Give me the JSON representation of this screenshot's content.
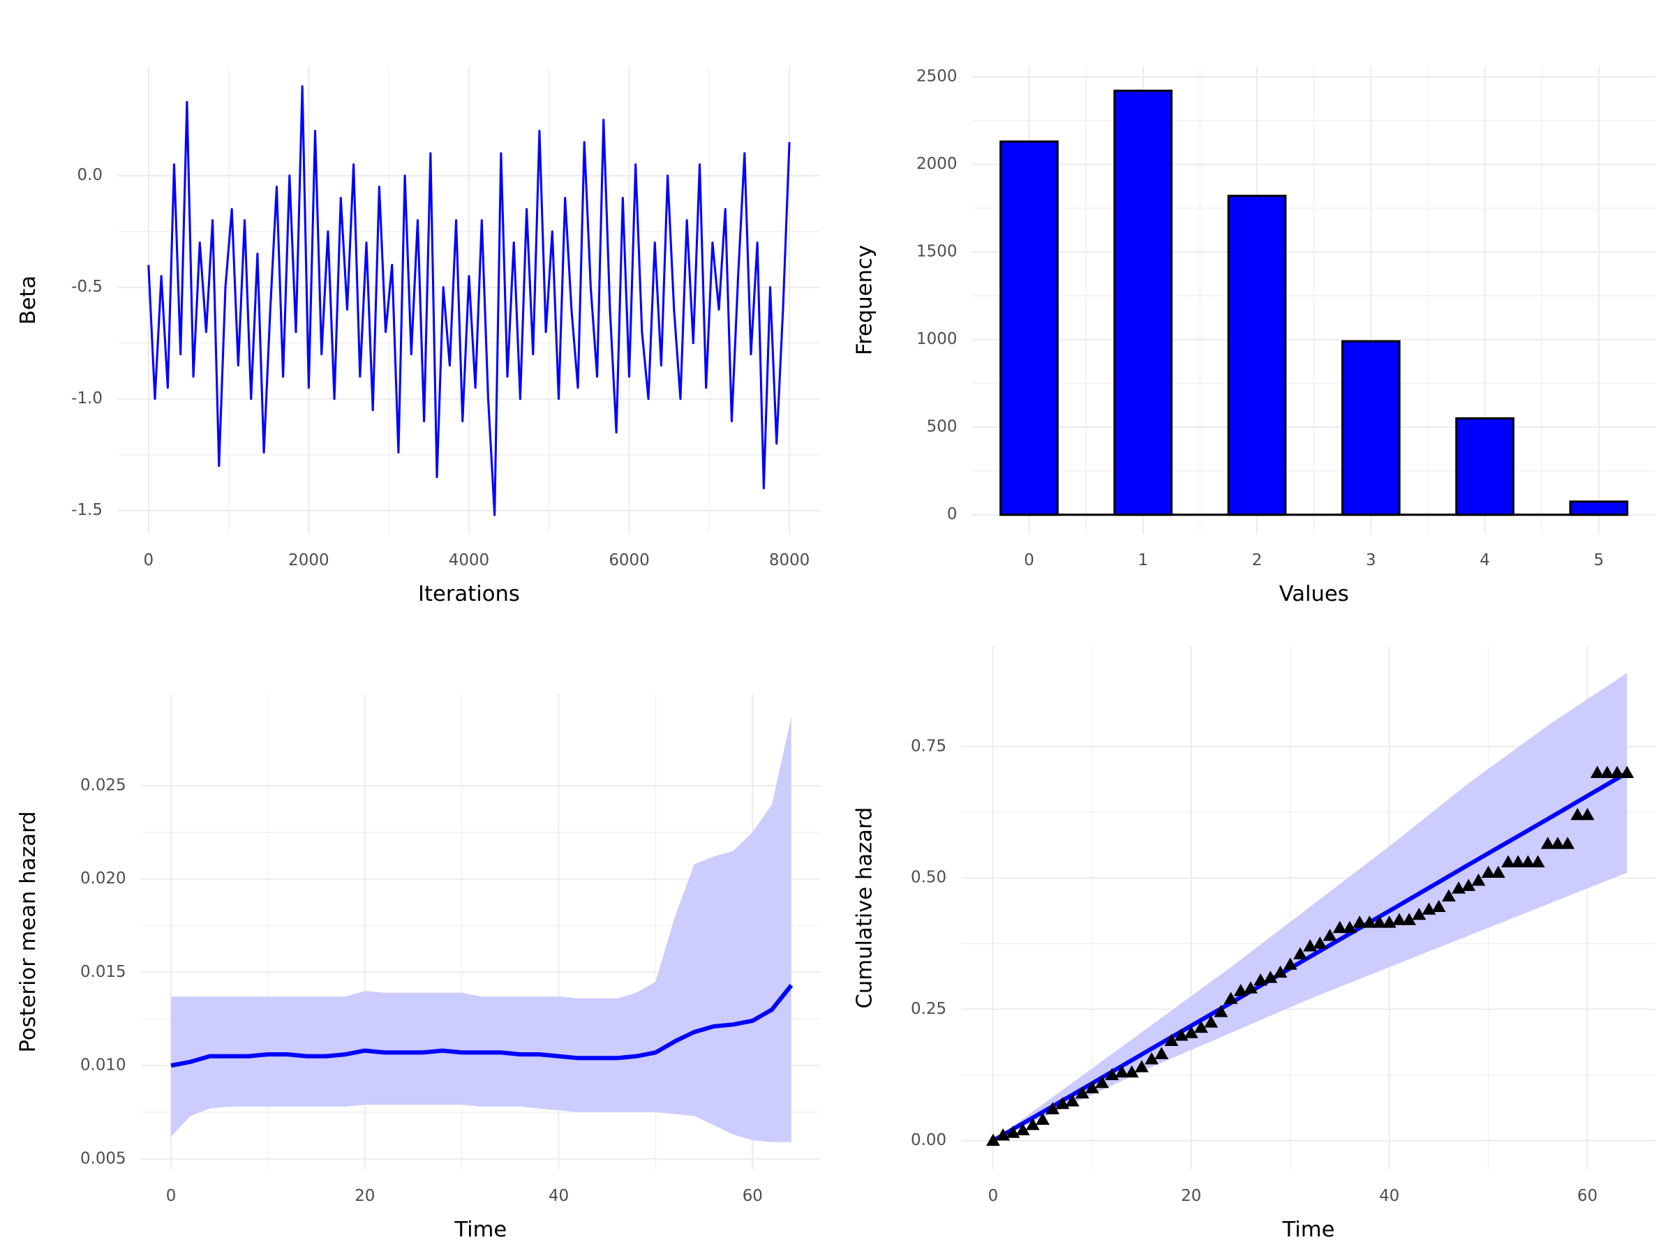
{
  "chart_data": [
    {
      "type": "line",
      "xlabel": "Iterations",
      "ylabel": "Beta",
      "color": "#0000ff",
      "x": [
        0,
        80,
        160,
        240,
        320,
        400,
        480,
        560,
        640,
        720,
        800,
        880,
        960,
        1040,
        1120,
        1200,
        1280,
        1360,
        1440,
        1520,
        1600,
        1680,
        1760,
        1840,
        1920,
        2000,
        2080,
        2160,
        2240,
        2320,
        2400,
        2480,
        2560,
        2640,
        2720,
        2800,
        2880,
        2960,
        3040,
        3120,
        3200,
        3280,
        3360,
        3440,
        3520,
        3600,
        3680,
        3760,
        3840,
        3920,
        4000,
        4080,
        4160,
        4240,
        4320,
        4400,
        4480,
        4560,
        4640,
        4720,
        4800,
        4880,
        4960,
        5040,
        5120,
        5200,
        5280,
        5360,
        5440,
        5520,
        5600,
        5680,
        5760,
        5840,
        5920,
        6000,
        6080,
        6160,
        6240,
        6320,
        6400,
        6480,
        6560,
        6640,
        6720,
        6800,
        6880,
        6960,
        7040,
        7120,
        7200,
        7280,
        7360,
        7440,
        7520,
        7600,
        7680,
        7760,
        7840,
        7920,
        8000
      ],
      "values": [
        -0.4,
        -1.0,
        -0.45,
        -0.95,
        0.05,
        -0.8,
        0.33,
        -0.9,
        -0.3,
        -0.7,
        -0.2,
        -1.3,
        -0.5,
        -0.15,
        -0.85,
        -0.2,
        -1.0,
        -0.35,
        -1.24,
        -0.6,
        -0.05,
        -0.9,
        0.0,
        -0.7,
        0.4,
        -0.95,
        0.2,
        -0.8,
        -0.25,
        -1.0,
        -0.1,
        -0.6,
        0.05,
        -0.9,
        -0.3,
        -1.05,
        -0.05,
        -0.7,
        -0.4,
        -1.24,
        0.0,
        -0.8,
        -0.2,
        -1.1,
        0.1,
        -1.35,
        -0.5,
        -0.85,
        -0.2,
        -1.1,
        -0.45,
        -0.95,
        -0.2,
        -1.0,
        -1.52,
        0.1,
        -0.9,
        -0.3,
        -1.0,
        -0.15,
        -0.8,
        0.2,
        -0.7,
        -0.25,
        -1.0,
        -0.1,
        -0.6,
        -0.95,
        0.15,
        -0.5,
        -0.9,
        0.25,
        -0.6,
        -1.15,
        -0.1,
        -0.9,
        0.05,
        -0.7,
        -1.0,
        -0.3,
        -0.85,
        0.0,
        -0.6,
        -1.0,
        -0.2,
        -0.75,
        0.05,
        -0.95,
        -0.3,
        -0.6,
        -0.15,
        -1.1,
        -0.45,
        0.1,
        -0.8,
        -0.3,
        -1.4,
        -0.5,
        -1.2,
        -0.6,
        0.15
      ],
      "xlim": [
        -387,
        8387
      ],
      "ylim": [
        -1.605,
        0.49
      ],
      "xticks": [
        0,
        2000,
        4000,
        6000,
        8000
      ],
      "yticks": [
        {
          "value": -1.5,
          "label": "-1.5"
        },
        {
          "value": -1,
          "label": "-1.0"
        },
        {
          "value": -0.5,
          "label": "-0.5"
        },
        {
          "value": 0,
          "label": "0.0"
        }
      ],
      "grid": true
    },
    {
      "type": "bar",
      "xlabel": "Values",
      "ylabel": "Frequency",
      "color": "#0000ff",
      "edgecolor": "#000000",
      "categories": [
        "0",
        "1",
        "2",
        "3",
        "4",
        "5"
      ],
      "values": [
        2130,
        2420,
        1820,
        990,
        550,
        75
      ],
      "ylim": [
        -110,
        2560
      ],
      "yticks": [
        0,
        500,
        1000,
        1500,
        2000,
        2500
      ],
      "grid": true
    },
    {
      "type": "line",
      "xlabel": "Time",
      "ylabel": "Posterior mean hazard",
      "color": "#0000ff",
      "band_color": "#ccccff",
      "x": [
        0,
        2,
        4,
        6,
        8,
        10,
        12,
        14,
        16,
        18,
        20,
        22,
        24,
        26,
        28,
        30,
        32,
        34,
        36,
        38,
        40,
        42,
        44,
        46,
        48,
        50,
        52,
        54,
        56,
        58,
        60,
        62,
        64
      ],
      "values": [
        0.01,
        0.0102,
        0.0105,
        0.0105,
        0.0105,
        0.0106,
        0.0106,
        0.0105,
        0.0105,
        0.0106,
        0.0108,
        0.0107,
        0.0107,
        0.0107,
        0.0108,
        0.0107,
        0.0107,
        0.0107,
        0.0106,
        0.0106,
        0.0105,
        0.0104,
        0.0104,
        0.0104,
        0.0105,
        0.0107,
        0.0113,
        0.0118,
        0.0121,
        0.0122,
        0.0124,
        0.013,
        0.0143
      ],
      "lower": [
        0.0062,
        0.0073,
        0.0077,
        0.0078,
        0.0078,
        0.0078,
        0.0078,
        0.0078,
        0.0078,
        0.0078,
        0.0079,
        0.0079,
        0.0079,
        0.0079,
        0.0079,
        0.0079,
        0.0078,
        0.0078,
        0.0078,
        0.0077,
        0.0076,
        0.0075,
        0.0075,
        0.0075,
        0.0075,
        0.0075,
        0.0074,
        0.0073,
        0.0068,
        0.0063,
        0.006,
        0.0059,
        0.0059
      ],
      "upper": [
        0.0137,
        0.0137,
        0.0137,
        0.0137,
        0.0137,
        0.0137,
        0.0137,
        0.0137,
        0.0137,
        0.0137,
        0.014,
        0.0139,
        0.0139,
        0.0139,
        0.0139,
        0.0139,
        0.0137,
        0.0137,
        0.0137,
        0.0137,
        0.0137,
        0.0136,
        0.0136,
        0.0136,
        0.0139,
        0.0145,
        0.018,
        0.0208,
        0.0212,
        0.0215,
        0.0225,
        0.024,
        0.0287
      ],
      "xlim": [
        -3.1,
        67
      ],
      "ylim": [
        0.00443,
        0.0299
      ],
      "xticks": [
        0,
        20,
        40,
        60
      ],
      "yticks": [
        0.005,
        {
          "value": 0.01,
          "label": "0.010"
        },
        0.015,
        {
          "value": 0.02,
          "label": "0.020"
        },
        0.025
      ],
      "grid": true
    },
    {
      "type": "line",
      "xlabel": "Time",
      "ylabel": "Cumulative hazard",
      "color": "#0000ff",
      "band_color": "#ccccff",
      "x": [
        0,
        8,
        16,
        24,
        32,
        40,
        48,
        56,
        64
      ],
      "values": [
        0,
        0.087,
        0.175,
        0.262,
        0.35,
        0.437,
        0.525,
        0.612,
        0.7
      ],
      "lower": [
        0,
        0.07,
        0.14,
        0.205,
        0.27,
        0.33,
        0.39,
        0.45,
        0.51
      ],
      "upper": [
        0,
        0.11,
        0.22,
        0.33,
        0.445,
        0.56,
        0.68,
        0.79,
        0.89
      ],
      "points": {
        "color": "#000000",
        "marker": "triangle",
        "x": [
          0,
          1,
          2,
          3,
          4,
          5,
          6,
          7,
          8,
          9,
          10,
          11,
          12,
          13,
          14,
          15,
          16,
          17,
          18,
          19,
          20,
          21,
          22,
          23,
          24,
          25,
          26,
          27,
          28,
          29,
          30,
          31,
          32,
          33,
          34,
          35,
          36,
          37,
          38,
          39,
          40,
          41,
          42,
          43,
          44,
          45,
          46,
          47,
          48,
          49,
          50,
          51,
          52,
          53,
          54,
          55,
          56,
          57,
          58,
          59,
          60,
          61,
          62,
          63,
          64
        ],
        "values": [
          0,
          0.01,
          0.015,
          0.02,
          0.03,
          0.04,
          0.06,
          0.07,
          0.075,
          0.09,
          0.1,
          0.11,
          0.125,
          0.13,
          0.13,
          0.14,
          0.155,
          0.165,
          0.19,
          0.2,
          0.205,
          0.215,
          0.225,
          0.245,
          0.27,
          0.285,
          0.29,
          0.305,
          0.31,
          0.32,
          0.335,
          0.355,
          0.37,
          0.375,
          0.39,
          0.405,
          0.405,
          0.415,
          0.415,
          0.415,
          0.415,
          0.42,
          0.42,
          0.43,
          0.44,
          0.445,
          0.465,
          0.48,
          0.485,
          0.495,
          0.51,
          0.51,
          0.53,
          0.53,
          0.53,
          0.53,
          0.565,
          0.565,
          0.565,
          0.62,
          0.62,
          0.7,
          0.7,
          0.7,
          0.7
        ]
      },
      "xlim": [
        -3.2,
        66.9
      ],
      "ylim": [
        -0.055,
        0.941
      ],
      "xticks": [
        0,
        20,
        40,
        60
      ],
      "yticks": [
        {
          "value": 0,
          "label": "0.00"
        },
        0.25,
        {
          "value": 0.5,
          "label": "0.50"
        },
        0.75
      ],
      "grid": true
    }
  ]
}
